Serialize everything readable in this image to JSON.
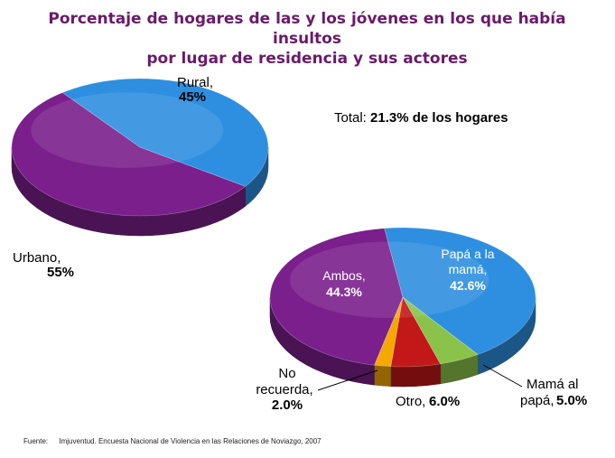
{
  "title": [
    "Porcentaje de hogares de las y los jóvenes en los que había insultos",
    "por lugar de residencia y sus actores"
  ],
  "total": {
    "label": "Total:",
    "value": "21.3% de los hogares"
  },
  "source": {
    "prefix": "Fuente:",
    "text": "Imjuventud. Encuesta Nacional de Violencia en las Relaciones de Noviazgo, 2007"
  },
  "chart_data": [
    {
      "type": "pie",
      "title": "",
      "slices": [
        {
          "label": "Rural,",
          "value": 45,
          "display": "45%",
          "color": "#2e8fe0"
        },
        {
          "label": "Urbano,",
          "value": 55,
          "display": "55%",
          "color": "#7a1f8c"
        }
      ]
    },
    {
      "type": "pie",
      "title": "",
      "slices": [
        {
          "label": "Papá a la mamá,",
          "value": 42.6,
          "display": "42.6%",
          "color": "#2e8fe0"
        },
        {
          "label": "Mamá al papá,",
          "value": 5.0,
          "display": "5.0%",
          "color": "#8bc34a"
        },
        {
          "label": "Otro,",
          "value": 6.0,
          "display": "6.0%",
          "color": "#c21818"
        },
        {
          "label": "No recuerda,",
          "value": 2.0,
          "display": "2.0%",
          "color": "#f5a800"
        },
        {
          "label": "Ambos,",
          "value": 44.3,
          "display": "44.3%",
          "color": "#7a1f8c"
        }
      ]
    }
  ]
}
